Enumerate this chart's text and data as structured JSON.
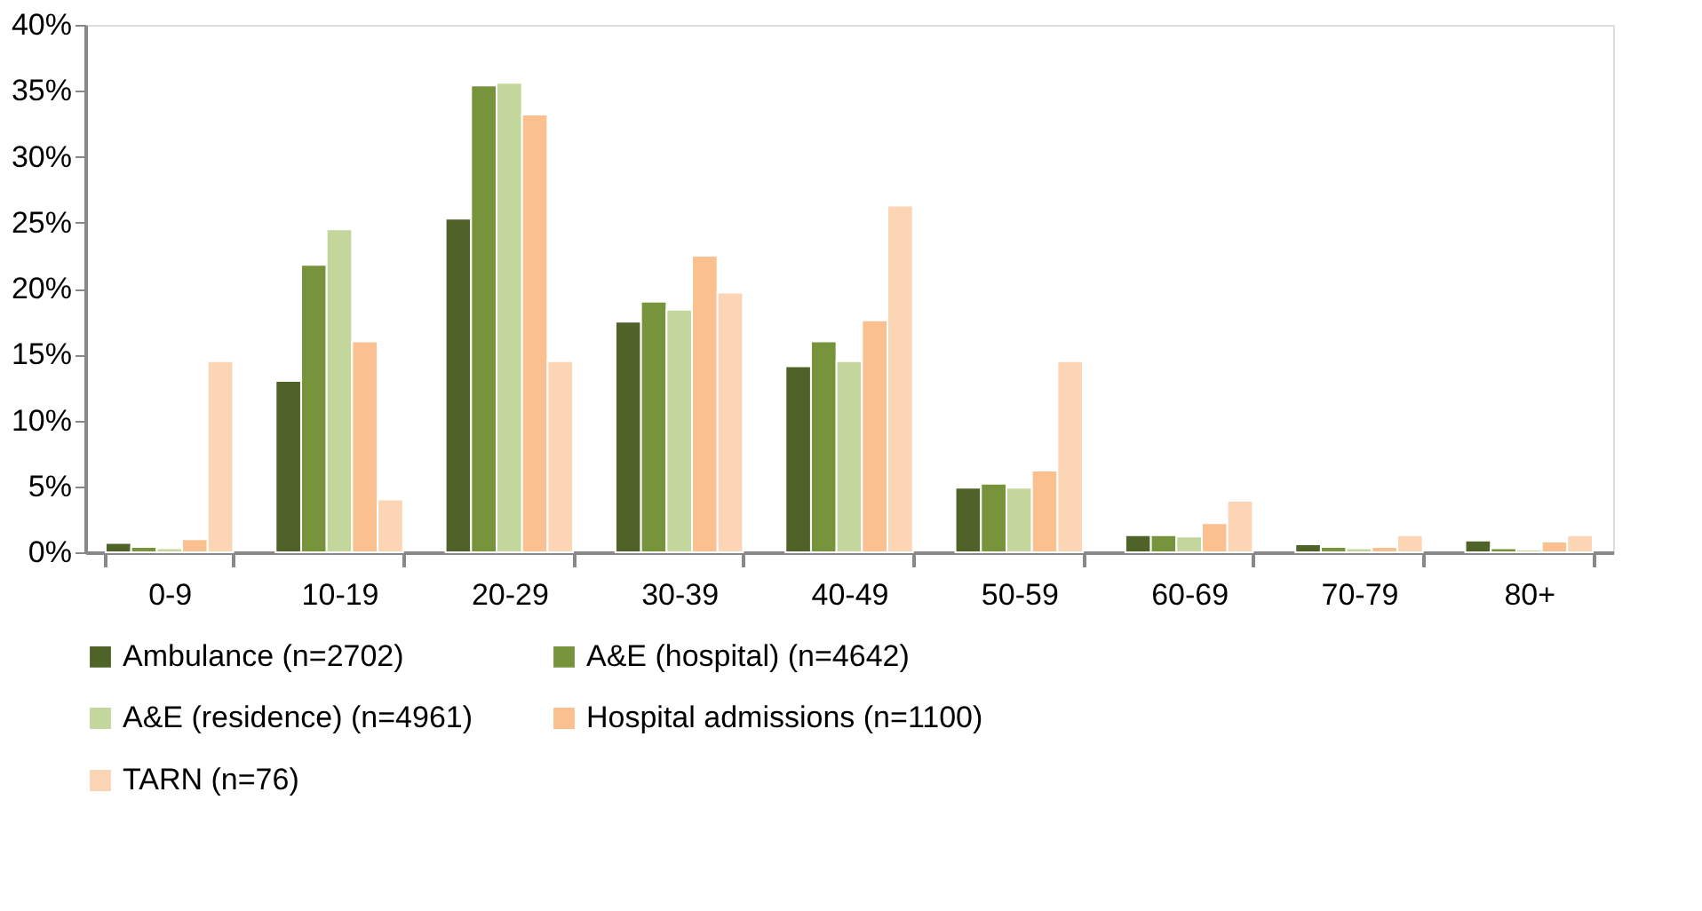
{
  "chart_data": {
    "type": "bar",
    "categories": [
      "0-9",
      "10-19",
      "20-29",
      "30-39",
      "40-49",
      "50-59",
      "60-69",
      "70-79",
      "80+"
    ],
    "series": [
      {
        "name": "Ambulance (n=2702)",
        "color": "#4f6228",
        "values": [
          0.7,
          13.0,
          25.3,
          17.5,
          14.1,
          4.9,
          1.3,
          0.6,
          0.9
        ]
      },
      {
        "name": "A&E (hospital) (n=4642)",
        "color": "#77933c",
        "values": [
          0.4,
          21.8,
          35.4,
          19.0,
          16.0,
          5.2,
          1.3,
          0.4,
          0.3
        ]
      },
      {
        "name": "A&E (residence) (n=4961)",
        "color": "#c3d69b",
        "values": [
          0.3,
          24.5,
          35.6,
          18.4,
          14.5,
          4.9,
          1.2,
          0.3,
          0.2
        ]
      },
      {
        "name": "Hospital admissions (n=1100)",
        "color": "#fac090",
        "values": [
          1.0,
          16.0,
          33.2,
          22.5,
          17.6,
          6.2,
          2.2,
          0.4,
          0.8
        ]
      },
      {
        "name": "TARN (n=76)",
        "color": "#fcd5b5",
        "values": [
          14.5,
          4.0,
          14.5,
          19.7,
          26.3,
          14.5,
          3.9,
          1.3,
          1.3
        ]
      }
    ],
    "ylim": [
      0,
      40
    ],
    "yticks": [
      {
        "value": 0,
        "label": "0%"
      },
      {
        "value": 5,
        "label": "5%"
      },
      {
        "value": 10,
        "label": "10%"
      },
      {
        "value": 15,
        "label": "15%"
      },
      {
        "value": 20,
        "label": "20%"
      },
      {
        "value": 25,
        "label": "25%"
      },
      {
        "value": 30,
        "label": "30%"
      },
      {
        "value": 35,
        "label": "35%"
      },
      {
        "value": 40,
        "label": "40%"
      }
    ],
    "grid": false,
    "legend": "bottom"
  }
}
